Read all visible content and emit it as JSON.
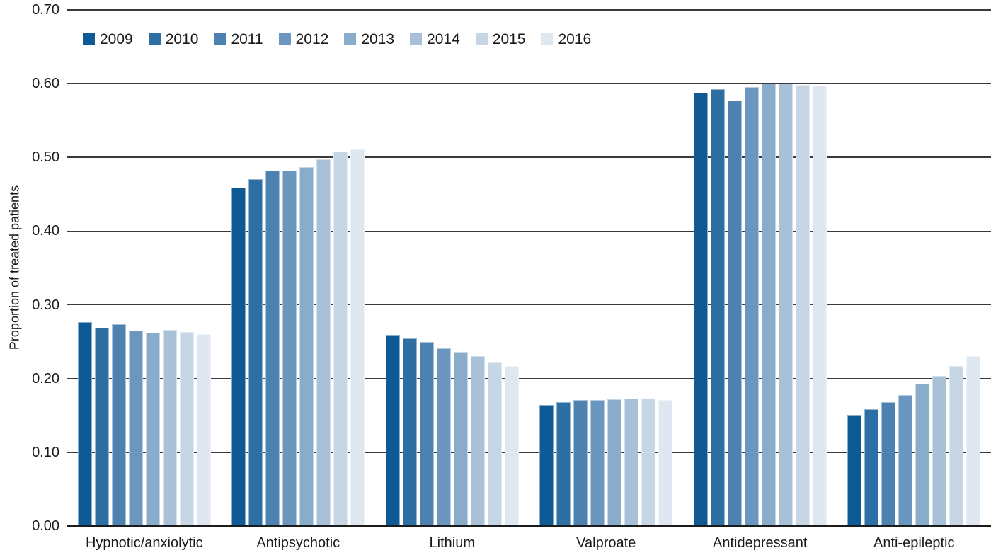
{
  "figure": {
    "background": "#ffffff",
    "text_color": "#1a1a1a",
    "gridline_color": "#3a3a3a",
    "baseline_color": "#1b1b1b"
  },
  "chart_data": {
    "type": "bar",
    "title": "",
    "xlabel": "",
    "ylabel": "Proportion of treated patients",
    "ylim": [
      0,
      0.7
    ],
    "yticks": [
      0.0,
      0.1,
      0.2,
      0.3,
      0.4,
      0.5,
      0.6,
      0.7
    ],
    "ytick_labels": [
      "0.00",
      "0.10",
      "0.20",
      "0.30",
      "0.40",
      "0.50",
      "0.60",
      "0.70"
    ],
    "grid": "horizontal",
    "legend_position": "top-left",
    "categories": [
      "Hypnotic/anxiolytic",
      "Antipsychotic",
      "Lithium",
      "Valproate",
      "Antidepressant",
      "Anti-epileptic"
    ],
    "series": [
      {
        "name": "2009",
        "color": "#0e5a97",
        "values": [
          0.277,
          0.459,
          0.259,
          0.164,
          0.588,
          0.151
        ]
      },
      {
        "name": "2010",
        "color": "#2e6fa3",
        "values": [
          0.269,
          0.471,
          0.254,
          0.168,
          0.592,
          0.158
        ]
      },
      {
        "name": "2011",
        "color": "#4d82b0",
        "values": [
          0.274,
          0.482,
          0.25,
          0.171,
          0.577,
          0.168
        ]
      },
      {
        "name": "2012",
        "color": "#6b96bf",
        "values": [
          0.265,
          0.482,
          0.241,
          0.171,
          0.595,
          0.178
        ]
      },
      {
        "name": "2013",
        "color": "#8aaccb",
        "values": [
          0.262,
          0.487,
          0.236,
          0.172,
          0.6,
          0.193
        ]
      },
      {
        "name": "2014",
        "color": "#a9c1d8",
        "values": [
          0.266,
          0.497,
          0.23,
          0.173,
          0.6,
          0.204
        ]
      },
      {
        "name": "2015",
        "color": "#c6d6e5",
        "values": [
          0.263,
          0.508,
          0.222,
          0.173,
          0.598,
          0.217
        ]
      },
      {
        "name": "2016",
        "color": "#dfe8f0",
        "values": [
          0.26,
          0.511,
          0.217,
          0.171,
          0.597,
          0.23
        ]
      }
    ]
  }
}
